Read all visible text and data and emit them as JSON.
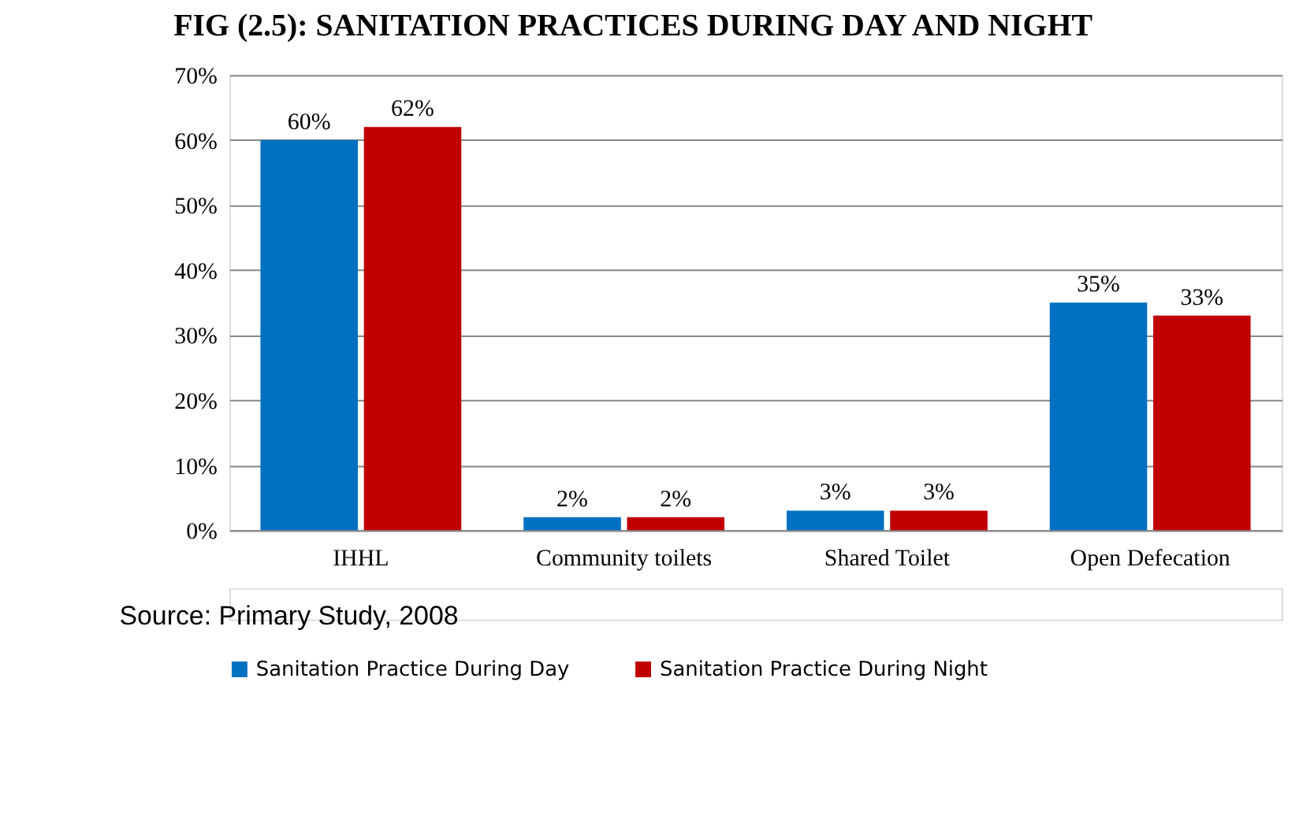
{
  "chart_data": {
    "type": "bar",
    "title": "FIG (2.5):  SANITATION PRACTICES DURING DAY AND NIGHT",
    "categories": [
      "IHHL",
      "Community toilets",
      "Shared Toilet",
      "Open Defecation"
    ],
    "series": [
      {
        "name": "Sanitation Practice During Day",
        "color": "#0070c0",
        "values": [
          60,
          2,
          3,
          35
        ],
        "value_labels": [
          "60%",
          "2%",
          "3%",
          "35%"
        ]
      },
      {
        "name": "Sanitation Practice During Night",
        "color": "#c00000",
        "values": [
          62,
          2,
          3,
          33
        ],
        "value_labels": [
          "62%",
          "2%",
          "3%",
          "33%"
        ]
      }
    ],
    "ylim": [
      0,
      70
    ],
    "yticks": [
      {
        "value": 0,
        "label": "0%"
      },
      {
        "value": 10,
        "label": "10%"
      },
      {
        "value": 20,
        "label": "20%"
      },
      {
        "value": 30,
        "label": "30%"
      },
      {
        "value": 40,
        "label": "40%"
      },
      {
        "value": 50,
        "label": "50%"
      },
      {
        "value": 60,
        "label": "60%"
      },
      {
        "value": 70,
        "label": "70%"
      }
    ],
    "grid": "y",
    "legend": "bottom",
    "annotations": [
      "Source: Primary Study, 2008"
    ]
  }
}
